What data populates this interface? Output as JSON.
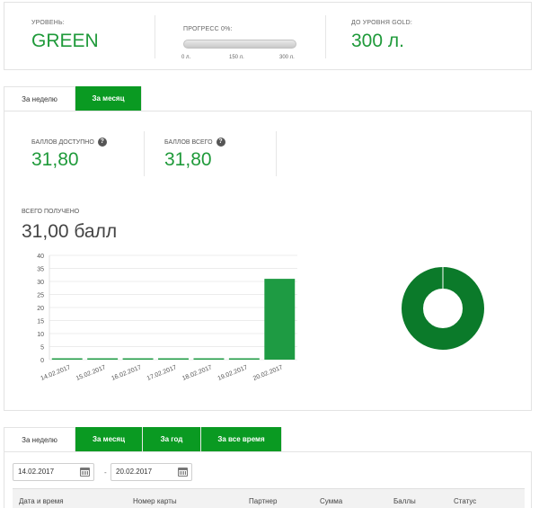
{
  "level": {
    "level_label": "УРОВЕНЬ:",
    "level_value": "GREEN",
    "progress_label": "ПРОГРЕСС 0%:",
    "progress_fraction": 0,
    "progress_ticks": [
      "0 л.",
      "150 л.",
      "300 л."
    ],
    "next_label": "ДО УРОВНЯ GOLD:",
    "next_value": "300 л.",
    "accent_color": "#1f9a3a"
  },
  "points_tabs": [
    {
      "label": "За неделю",
      "active": false
    },
    {
      "label": "За месяц",
      "active": true
    }
  ],
  "points": {
    "available_label": "БАЛЛОВ ДОСТУПНО",
    "available_value": "31,80",
    "total_label": "БАЛЛОВ ВСЕГО",
    "total_value": "31,80",
    "received_label": "ВСЕГО ПОЛУЧЕНО",
    "received_value": "31,00 балл",
    "help_icon": "question-circle-icon"
  },
  "chart_data": {
    "type": "bar",
    "categories": [
      "14.02.2017",
      "15.02.2017",
      "16.02.2017",
      "17.02.2017",
      "18.02.2017",
      "19.02.2017",
      "20.02.2017"
    ],
    "values": [
      0,
      0,
      0,
      0,
      0,
      0,
      31
    ],
    "ylim": [
      0,
      40
    ],
    "yticks": [
      0,
      5,
      10,
      15,
      20,
      25,
      30,
      35,
      40
    ],
    "title": "",
    "xlabel": "",
    "ylabel": "",
    "grid": true,
    "bar_color": "#1e9b43",
    "donut": {
      "type": "pie",
      "values": [
        1
      ],
      "color": "#0b7a2a"
    }
  },
  "history_tabs": [
    {
      "label": "За неделю",
      "active": false
    },
    {
      "label": "За месяц",
      "active": true
    },
    {
      "label": "За год",
      "active": true
    },
    {
      "label": "За все время",
      "active": true
    }
  ],
  "history": {
    "date_from": "14.02.2017",
    "date_to": "20.02.2017",
    "separator": "-",
    "calendar_icon": "calendar-icon",
    "columns": [
      "Дата и время",
      "Номер карты",
      "Партнер",
      "Сумма",
      "Баллы",
      "Статус"
    ]
  }
}
